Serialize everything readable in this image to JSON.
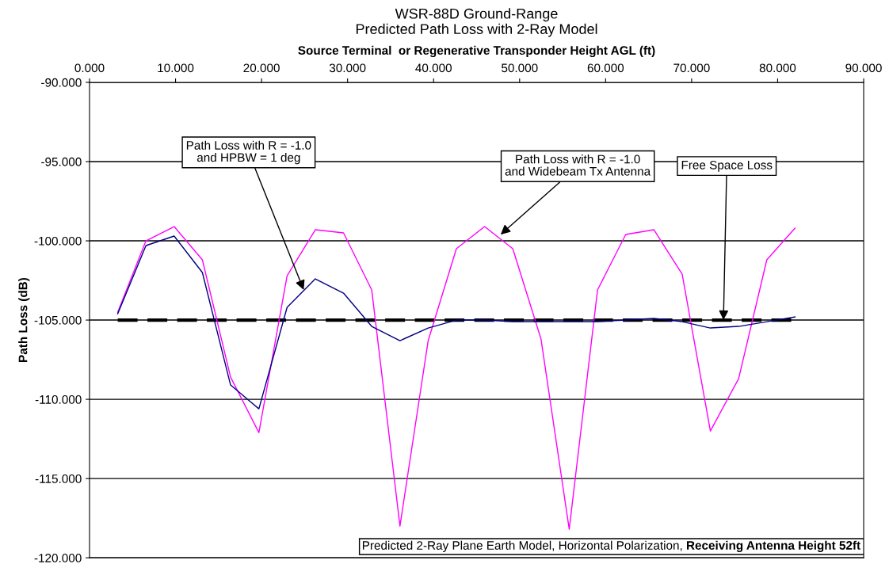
{
  "chart_data": {
    "type": "line",
    "title": "WSR-88D Ground-Range\nPredicted Path Loss with 2-Ray Model",
    "xlabel": "Source Terminal  or Regenerative Transponder Height AGL (ft)",
    "ylabel": "Path Loss (dB)",
    "x": [
      3.28,
      6.56,
      9.84,
      13.12,
      16.4,
      19.69,
      22.97,
      26.25,
      29.53,
      32.81,
      36.09,
      39.37,
      42.65,
      45.93,
      49.21,
      52.49,
      55.77,
      59.06,
      62.34,
      65.62,
      68.9,
      72.18,
      75.46,
      78.74,
      82.02
    ],
    "series": [
      {
        "color": "#ff00ff",
        "values": [
          -104.5,
          -100.0,
          -99.1,
          -101.2,
          -108.6,
          -112.1,
          -102.2,
          -99.3,
          -99.5,
          -103.1,
          -118.0,
          -106.3,
          -100.5,
          -99.1,
          -100.5,
          -106.2,
          -118.2,
          -103.1,
          -99.6,
          -99.3,
          -102.1,
          -112.0,
          -108.7,
          -101.2,
          -99.2
        ]
      },
      {
        "color": "#000080",
        "values": [
          -104.6,
          -100.3,
          -99.7,
          -102.0,
          -109.1,
          -110.6,
          -104.2,
          -102.4,
          -103.3,
          -105.4,
          -106.3,
          -105.5,
          -105.0,
          -105.0,
          -105.1,
          -105.1,
          -105.1,
          -105.1,
          -105.0,
          -104.9,
          -105.1,
          -105.5,
          -105.4,
          -105.1,
          -104.8
        ]
      },
      {
        "color": "#000000",
        "line_style": "dashed",
        "values": [
          -105.0,
          -105.0,
          -105.0,
          -105.0,
          -105.0,
          -105.0,
          -105.0,
          -105.0,
          -105.0,
          -105.0,
          -105.0,
          -105.0,
          -105.0,
          -105.0,
          -105.0,
          -105.0,
          -105.0,
          -105.0,
          -105.0,
          -105.0,
          -105.0,
          -105.0,
          -105.0,
          -105.0,
          -105.0
        ]
      }
    ],
    "xlim": [
      0,
      90
    ],
    "xticks": [
      {
        "value": 0,
        "label": "0.000"
      },
      {
        "value": 10,
        "label": "10.000"
      },
      {
        "value": 20,
        "label": "20.000"
      },
      {
        "value": 30,
        "label": "30.000"
      },
      {
        "value": 40,
        "label": "40.000"
      },
      {
        "value": 50,
        "label": "50.000"
      },
      {
        "value": 60,
        "label": "60.000"
      },
      {
        "value": 70,
        "label": "70.000"
      },
      {
        "value": 80,
        "label": "80.000"
      },
      {
        "value": 90,
        "label": "90.000"
      }
    ],
    "ylim": [
      -120,
      -90
    ],
    "yticks": [
      {
        "value": -120,
        "label": "-120.000"
      },
      {
        "value": -115,
        "label": "-115.000"
      },
      {
        "value": -110,
        "label": "-110.000"
      },
      {
        "value": -105,
        "label": "-105.000"
      },
      {
        "value": -100,
        "label": "-100.000"
      },
      {
        "value": -95,
        "label": "-95.000"
      },
      {
        "value": -90,
        "label": "-90.000"
      }
    ],
    "grid": "y",
    "legend": false,
    "marker": "none",
    "annotations": [
      {
        "text": "Path Loss with R = -1.0\nand HPBW = 1 deg",
        "x": 24.9,
        "y": -103.1
      },
      {
        "text": "Path Loss with R = -1.0\nand Widebeam Tx Antenna",
        "x": 47.8,
        "y": -99.6
      },
      {
        "text": "Free Space Loss",
        "x": 73.7,
        "y": -105.0
      },
      "Predicted 2-Ray Plane Earth Model, Horizontal Polarization,",
      "Receiving Antenna Height 52ft"
    ]
  }
}
